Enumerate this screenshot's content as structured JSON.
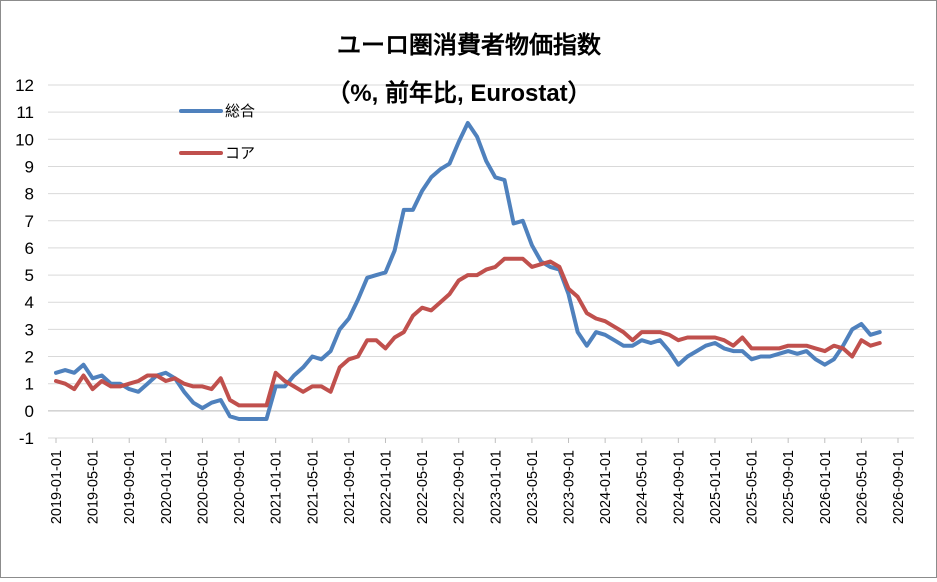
{
  "chart_data": {
    "type": "line",
    "title": "ユーロ圏消費者物価指数",
    "subtitle": "（%, 前年比, Eurostat）",
    "xlabel": "",
    "ylabel": "",
    "ylim": [
      -1,
      12
    ],
    "yticks": [
      "-1",
      "0",
      "1",
      "2",
      "3",
      "4",
      "5",
      "6",
      "7",
      "8",
      "9",
      "10",
      "11",
      "12"
    ],
    "xticks": [
      "2019-01-01",
      "2019-05-01",
      "2019-09-01",
      "2020-01-01",
      "2020-05-01",
      "2020-09-01",
      "2021-01-01",
      "2021-05-01",
      "2021-09-01",
      "2022-01-01",
      "2022-05-01",
      "2022-09-01",
      "2023-01-01",
      "2023-05-01",
      "2023-09-01",
      "2024-01-01",
      "2024-05-01",
      "2024-09-01",
      "2025-01-01",
      "2025-05-01",
      "2025-09-01",
      "2026-01-01",
      "2026-05-01",
      "2026-09-01"
    ],
    "x_start": "2019-01",
    "grid": true,
    "legend_position": "top-left",
    "series": [
      {
        "name": "総合",
        "color": "#4f81bd",
        "values": [
          1.4,
          1.5,
          1.4,
          1.7,
          1.2,
          1.3,
          1.0,
          1.0,
          0.8,
          0.7,
          1.0,
          1.3,
          1.4,
          1.2,
          0.7,
          0.3,
          0.1,
          0.3,
          0.4,
          -0.2,
          -0.3,
          -0.3,
          -0.3,
          -0.3,
          0.9,
          0.9,
          1.3,
          1.6,
          2.0,
          1.9,
          2.2,
          3.0,
          3.4,
          4.1,
          4.9,
          5.0,
          5.1,
          5.9,
          7.4,
          7.4,
          8.1,
          8.6,
          8.9,
          9.1,
          9.9,
          10.6,
          10.1,
          9.2,
          8.6,
          8.5,
          6.9,
          7.0,
          6.1,
          5.5,
          5.3,
          5.2,
          4.3,
          2.9,
          2.4,
          2.9,
          2.8,
          2.6,
          2.4,
          2.4,
          2.6,
          2.5,
          2.6,
          2.2,
          1.7,
          2.0,
          2.2,
          2.4,
          2.5,
          2.3,
          2.2,
          2.2,
          1.9,
          2.0,
          2.0,
          2.1,
          2.2,
          2.1,
          2.2,
          1.9,
          1.7,
          1.9,
          2.4,
          3.0,
          3.2,
          2.8,
          2.9
        ]
      },
      {
        "name": "コア",
        "color": "#c0504d",
        "values": [
          1.1,
          1.0,
          0.8,
          1.3,
          0.8,
          1.1,
          0.9,
          0.9,
          1.0,
          1.1,
          1.3,
          1.3,
          1.1,
          1.2,
          1.0,
          0.9,
          0.9,
          0.8,
          1.2,
          0.4,
          0.2,
          0.2,
          0.2,
          0.2,
          1.4,
          1.1,
          0.9,
          0.7,
          0.9,
          0.9,
          0.7,
          1.6,
          1.9,
          2.0,
          2.6,
          2.6,
          2.3,
          2.7,
          2.9,
          3.5,
          3.8,
          3.7,
          4.0,
          4.3,
          4.8,
          5.0,
          5.0,
          5.2,
          5.3,
          5.6,
          5.6,
          5.6,
          5.3,
          5.4,
          5.5,
          5.3,
          4.5,
          4.2,
          3.6,
          3.4,
          3.3,
          3.1,
          2.9,
          2.6,
          2.9,
          2.9,
          2.9,
          2.8,
          2.6,
          2.7,
          2.7,
          2.7,
          2.7,
          2.6,
          2.4,
          2.7,
          2.3,
          2.3,
          2.3,
          2.3,
          2.4,
          2.4,
          2.4,
          2.3,
          2.2,
          2.4,
          2.3,
          2.0,
          2.6,
          2.4,
          2.5
        ]
      }
    ]
  }
}
